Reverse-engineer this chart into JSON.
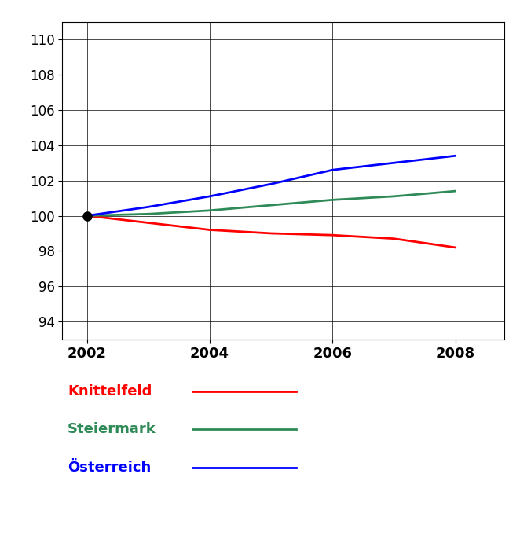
{
  "title": "",
  "years": [
    2002,
    2003,
    2004,
    2005,
    2006,
    2007,
    2008
  ],
  "knittelfeld": [
    100.0,
    99.6,
    99.2,
    99.0,
    98.9,
    98.7,
    98.2
  ],
  "steiermark": [
    100.0,
    100.1,
    100.3,
    100.6,
    100.9,
    101.1,
    101.4
  ],
  "oesterreich": [
    100.0,
    100.5,
    101.1,
    101.8,
    102.6,
    103.0,
    103.4
  ],
  "color_knittelfeld": "#ff0000",
  "color_steiermark": "#2e8b57",
  "color_oesterreich": "#0000ff",
  "ylim_bottom": 93,
  "ylim_top": 111,
  "yticks": [
    94,
    96,
    98,
    100,
    102,
    104,
    106,
    108,
    110
  ],
  "xticks": [
    2002,
    2004,
    2006,
    2008
  ],
  "legend_labels": [
    "Knittelfeld",
    "Steiermark",
    "Österreich"
  ],
  "legend_colors": [
    "#ff0000",
    "#2e8b57",
    "#0000ff"
  ],
  "marker_year": 2002,
  "marker_value": 100.0,
  "background_color": "#ffffff",
  "grid_color": "#000000",
  "line_width": 2.0,
  "tick_label_color": "#000000",
  "xtick_fontsize": 13,
  "ytick_fontsize": 12,
  "legend_fontsize": 13,
  "xlim_left": 2001.6,
  "xlim_right": 2008.8
}
